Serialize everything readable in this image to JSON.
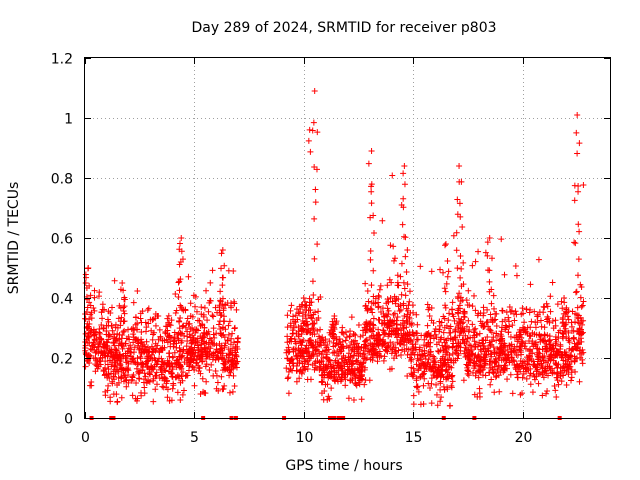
{
  "chart_data": {
    "type": "scatter",
    "title": "Day 289 of 2024, SRMTID for receiver p803",
    "xlabel": "GPS time / hours",
    "ylabel": "SRMTID / TECUs",
    "xlim": [
      0,
      24
    ],
    "ylim": [
      0,
      1.2
    ],
    "x_ticks": [
      0,
      5,
      10,
      15,
      20
    ],
    "x_tick_labels": [
      "0",
      "5",
      "10",
      "15",
      "20"
    ],
    "y_ticks": [
      0,
      0.2,
      0.4,
      0.6,
      0.8,
      1.0,
      1.2
    ],
    "y_tick_labels": [
      "0",
      "0.2",
      "0.4",
      "0.6",
      "0.8",
      "1",
      "1.2"
    ],
    "grid": true,
    "marker": "+",
    "color": "#ff0000",
    "series": [
      {
        "name": "SRMTID",
        "segments": [
          {
            "x_start": 0.0,
            "x_end": 0.9,
            "y_low": 0.1,
            "y_high": 0.52,
            "peak_x": 0.15,
            "peak_y": 0.5
          },
          {
            "x_start": 0.9,
            "x_end": 4.2,
            "y_low": 0.05,
            "y_high": 0.46,
            "peak_x": 1.7,
            "peak_y": 0.45
          },
          {
            "x_start": 4.2,
            "x_end": 4.6,
            "y_low": 0.06,
            "y_high": 0.6,
            "peak_x": 4.4,
            "peak_y": 0.6
          },
          {
            "x_start": 4.6,
            "x_end": 7.0,
            "y_low": 0.08,
            "y_high": 0.56,
            "peak_x": 6.3,
            "peak_y": 0.56
          },
          {
            "x_start": 9.2,
            "x_end": 10.2,
            "y_low": 0.08,
            "y_high": 0.4,
            "peak_x": 10.0,
            "peak_y": 0.4
          },
          {
            "x_start": 10.2,
            "x_end": 10.8,
            "y_low": 0.1,
            "y_high": 1.09,
            "peak_x": 10.5,
            "peak_y": 1.09
          },
          {
            "x_start": 10.8,
            "x_end": 12.8,
            "y_low": 0.06,
            "y_high": 0.34,
            "peak_x": 11.4,
            "peak_y": 0.34
          },
          {
            "x_start": 12.8,
            "x_end": 13.8,
            "y_low": 0.12,
            "y_high": 0.9,
            "peak_x": 13.1,
            "peak_y": 0.89
          },
          {
            "x_start": 13.8,
            "x_end": 14.9,
            "y_low": 0.14,
            "y_high": 0.84,
            "peak_x": 14.6,
            "peak_y": 0.84
          },
          {
            "x_start": 14.9,
            "x_end": 16.8,
            "y_low": 0.04,
            "y_high": 0.58,
            "peak_x": 16.5,
            "peak_y": 0.58
          },
          {
            "x_start": 16.8,
            "x_end": 17.4,
            "y_low": 0.12,
            "y_high": 0.84,
            "peak_x": 17.1,
            "peak_y": 0.84
          },
          {
            "x_start": 17.4,
            "x_end": 21.4,
            "y_low": 0.07,
            "y_high": 0.6,
            "peak_x": 18.5,
            "peak_y": 0.6
          },
          {
            "x_start": 21.4,
            "x_end": 22.3,
            "y_low": 0.07,
            "y_high": 0.4,
            "peak_x": 21.9,
            "peak_y": 0.4
          },
          {
            "x_start": 22.3,
            "x_end": 22.8,
            "y_low": 0.12,
            "y_high": 1.01,
            "peak_x": 22.5,
            "peak_y": 1.01
          }
        ]
      }
    ],
    "baseline_markers_x": [
      0.3,
      1.2,
      1.3,
      5.4,
      6.7,
      6.9,
      9.1,
      11.2,
      11.3,
      11.4,
      11.6,
      11.7,
      11.8,
      16.4,
      17.8,
      21.7
    ]
  }
}
